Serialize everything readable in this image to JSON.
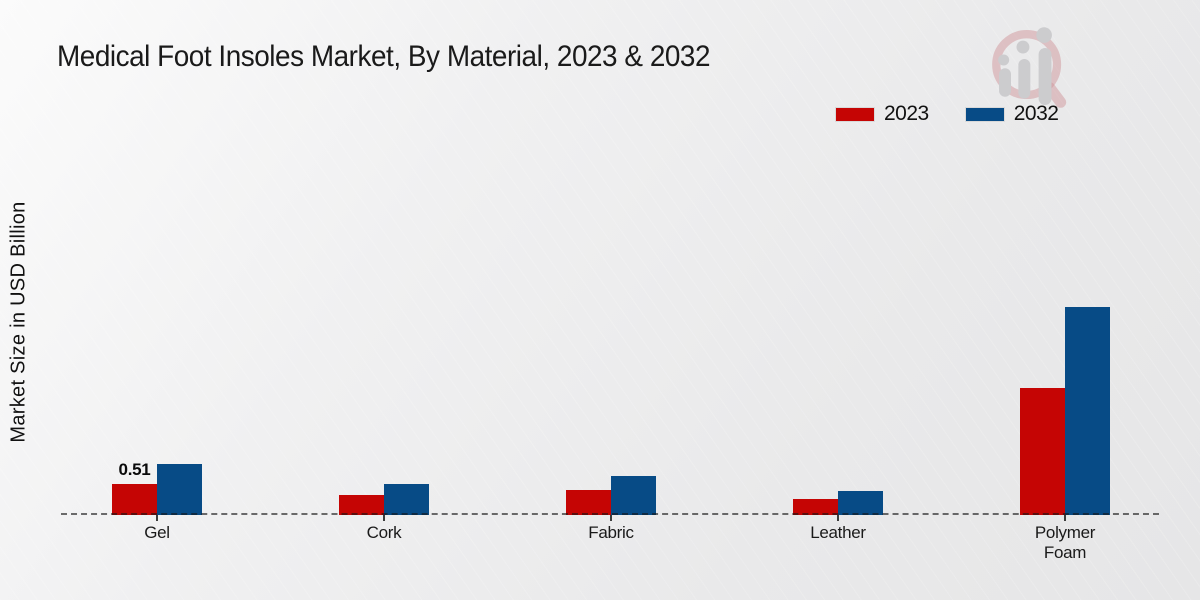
{
  "page": {
    "title": "Medical Foot Insoles Market, By Material, 2023 & 2032",
    "watermark": "chart-magnifier-logo",
    "colors": {
      "series_2023_red": "#c50504",
      "series_2032_blue": "#074b86",
      "bottom_strip_red": "#b90605",
      "background_gray": "#ebebec",
      "text_dark": "#1a1a1a"
    }
  },
  "chart_data": {
    "type": "bar",
    "title": "Medical Foot Insoles Market, By Material, 2023 & 2032",
    "xlabel": "",
    "ylabel": "Market Size in USD Billion",
    "categories": [
      "Gel",
      "Cork",
      "Fabric",
      "Leather",
      "Polymer Foam"
    ],
    "series": [
      {
        "name": "2023",
        "color": "#c50504",
        "values": [
          0.51,
          0.33,
          0.41,
          0.27,
          2.09
        ]
      },
      {
        "name": "2032",
        "color": "#074b86",
        "values": [
          0.84,
          0.51,
          0.64,
          0.39,
          3.42
        ]
      }
    ],
    "data_labels": [
      {
        "series": "2023",
        "category": "Gel",
        "text": "0.51"
      }
    ],
    "ylim": [
      0,
      3.6
    ],
    "grid": false,
    "axis_style": "dashed-baseline-only",
    "legend_position": "top-right"
  }
}
